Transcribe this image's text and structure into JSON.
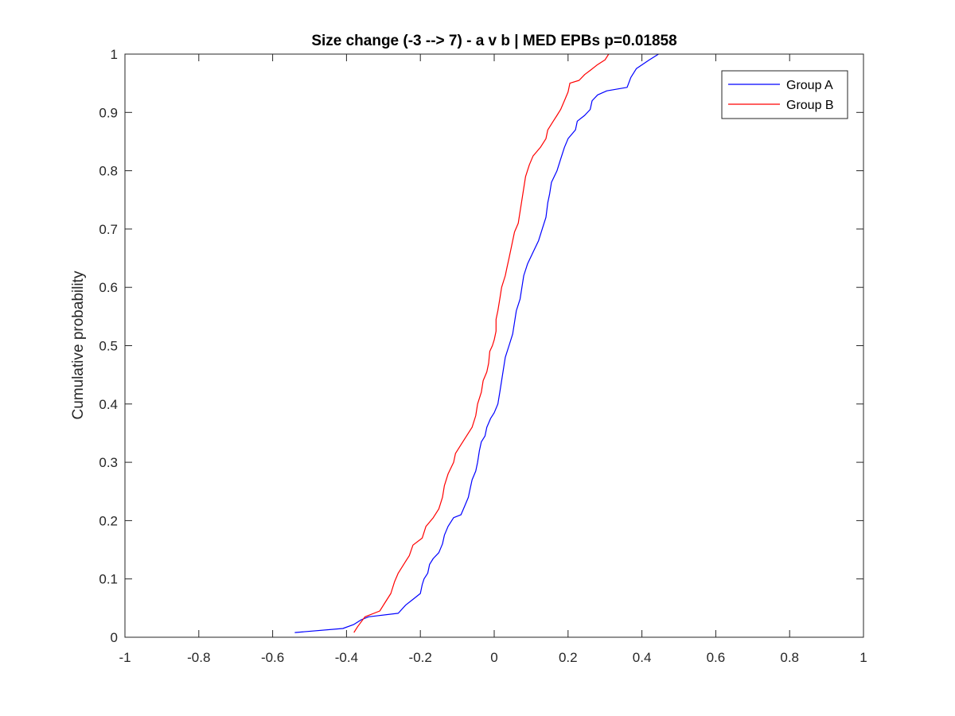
{
  "chart_data": {
    "type": "line",
    "title": "Size change (-3 --> 7) - a v b | MED EPBs p=0.01858",
    "xlabel": "",
    "ylabel": "Cumulative probability",
    "xlim": [
      -1,
      1
    ],
    "ylim": [
      0,
      1
    ],
    "x_ticks": [
      "-1",
      "-0.8",
      "-0.6",
      "-0.4",
      "-0.2",
      "0",
      "0.2",
      "0.4",
      "0.6",
      "0.8",
      "1"
    ],
    "y_ticks": [
      "0",
      "0.1",
      "0.2",
      "0.3",
      "0.4",
      "0.5",
      "0.6",
      "0.7",
      "0.8",
      "0.9",
      "1"
    ],
    "grid": false,
    "legend_position": "top-right",
    "series": [
      {
        "name": "Group A",
        "color": "#0000ff",
        "points": [
          [
            -0.54,
            0.008
          ],
          [
            -0.41,
            0.015
          ],
          [
            -0.38,
            0.022
          ],
          [
            -0.36,
            0.03
          ],
          [
            -0.34,
            0.035
          ],
          [
            -0.26,
            0.041
          ],
          [
            -0.24,
            0.055
          ],
          [
            -0.22,
            0.065
          ],
          [
            -0.2,
            0.075
          ],
          [
            -0.195,
            0.09
          ],
          [
            -0.19,
            0.1
          ],
          [
            -0.18,
            0.11
          ],
          [
            -0.175,
            0.125
          ],
          [
            -0.165,
            0.135
          ],
          [
            -0.15,
            0.145
          ],
          [
            -0.14,
            0.16
          ],
          [
            -0.135,
            0.175
          ],
          [
            -0.125,
            0.19
          ],
          [
            -0.115,
            0.2
          ],
          [
            -0.11,
            0.205
          ],
          [
            -0.09,
            0.21
          ],
          [
            -0.08,
            0.225
          ],
          [
            -0.07,
            0.24
          ],
          [
            -0.065,
            0.255
          ],
          [
            -0.06,
            0.27
          ],
          [
            -0.05,
            0.285
          ],
          [
            -0.045,
            0.3
          ],
          [
            -0.04,
            0.32
          ],
          [
            -0.035,
            0.335
          ],
          [
            -0.025,
            0.345
          ],
          [
            -0.02,
            0.36
          ],
          [
            -0.01,
            0.375
          ],
          [
            0.0,
            0.385
          ],
          [
            0.01,
            0.4
          ],
          [
            0.015,
            0.42
          ],
          [
            0.02,
            0.44
          ],
          [
            0.025,
            0.46
          ],
          [
            0.03,
            0.48
          ],
          [
            0.04,
            0.5
          ],
          [
            0.05,
            0.52
          ],
          [
            0.055,
            0.54
          ],
          [
            0.06,
            0.56
          ],
          [
            0.07,
            0.58
          ],
          [
            0.075,
            0.6
          ],
          [
            0.08,
            0.62
          ],
          [
            0.09,
            0.64
          ],
          [
            0.105,
            0.66
          ],
          [
            0.12,
            0.68
          ],
          [
            0.13,
            0.7
          ],
          [
            0.14,
            0.72
          ],
          [
            0.145,
            0.745
          ],
          [
            0.15,
            0.76
          ],
          [
            0.155,
            0.78
          ],
          [
            0.17,
            0.8
          ],
          [
            0.18,
            0.82
          ],
          [
            0.19,
            0.84
          ],
          [
            0.2,
            0.855
          ],
          [
            0.22,
            0.87
          ],
          [
            0.225,
            0.885
          ],
          [
            0.245,
            0.895
          ],
          [
            0.26,
            0.905
          ],
          [
            0.265,
            0.92
          ],
          [
            0.28,
            0.93
          ],
          [
            0.305,
            0.937
          ],
          [
            0.36,
            0.943
          ],
          [
            0.37,
            0.96
          ],
          [
            0.385,
            0.975
          ],
          [
            0.42,
            0.99
          ],
          [
            0.445,
            1.0
          ]
        ]
      },
      {
        "name": "Group B",
        "color": "#ff0000",
        "points": [
          [
            -0.38,
            0.008
          ],
          [
            -0.37,
            0.018
          ],
          [
            -0.35,
            0.035
          ],
          [
            -0.31,
            0.045
          ],
          [
            -0.295,
            0.06
          ],
          [
            -0.28,
            0.075
          ],
          [
            -0.27,
            0.095
          ],
          [
            -0.26,
            0.11
          ],
          [
            -0.245,
            0.125
          ],
          [
            -0.23,
            0.14
          ],
          [
            -0.22,
            0.158
          ],
          [
            -0.195,
            0.17
          ],
          [
            -0.185,
            0.19
          ],
          [
            -0.165,
            0.205
          ],
          [
            -0.15,
            0.22
          ],
          [
            -0.14,
            0.24
          ],
          [
            -0.135,
            0.26
          ],
          [
            -0.125,
            0.28
          ],
          [
            -0.11,
            0.3
          ],
          [
            -0.105,
            0.315
          ],
          [
            -0.09,
            0.33
          ],
          [
            -0.075,
            0.345
          ],
          [
            -0.06,
            0.36
          ],
          [
            -0.05,
            0.38
          ],
          [
            -0.045,
            0.4
          ],
          [
            -0.035,
            0.42
          ],
          [
            -0.03,
            0.44
          ],
          [
            -0.02,
            0.455
          ],
          [
            -0.015,
            0.47
          ],
          [
            -0.012,
            0.49
          ],
          [
            -0.005,
            0.5
          ],
          [
            0.0,
            0.51
          ],
          [
            0.005,
            0.525
          ],
          [
            0.005,
            0.545
          ],
          [
            0.01,
            0.56
          ],
          [
            0.015,
            0.58
          ],
          [
            0.02,
            0.6
          ],
          [
            0.03,
            0.62
          ],
          [
            0.035,
            0.635
          ],
          [
            0.04,
            0.65
          ],
          [
            0.045,
            0.665
          ],
          [
            0.05,
            0.68
          ],
          [
            0.055,
            0.695
          ],
          [
            0.065,
            0.71
          ],
          [
            0.07,
            0.73
          ],
          [
            0.075,
            0.75
          ],
          [
            0.08,
            0.77
          ],
          [
            0.085,
            0.79
          ],
          [
            0.095,
            0.81
          ],
          [
            0.105,
            0.825
          ],
          [
            0.125,
            0.84
          ],
          [
            0.14,
            0.855
          ],
          [
            0.145,
            0.87
          ],
          [
            0.16,
            0.885
          ],
          [
            0.17,
            0.895
          ],
          [
            0.18,
            0.905
          ],
          [
            0.19,
            0.92
          ],
          [
            0.2,
            0.935
          ],
          [
            0.205,
            0.95
          ],
          [
            0.23,
            0.955
          ],
          [
            0.245,
            0.965
          ],
          [
            0.26,
            0.972
          ],
          [
            0.28,
            0.982
          ],
          [
            0.3,
            0.99
          ],
          [
            0.31,
            1.0
          ]
        ]
      }
    ]
  }
}
